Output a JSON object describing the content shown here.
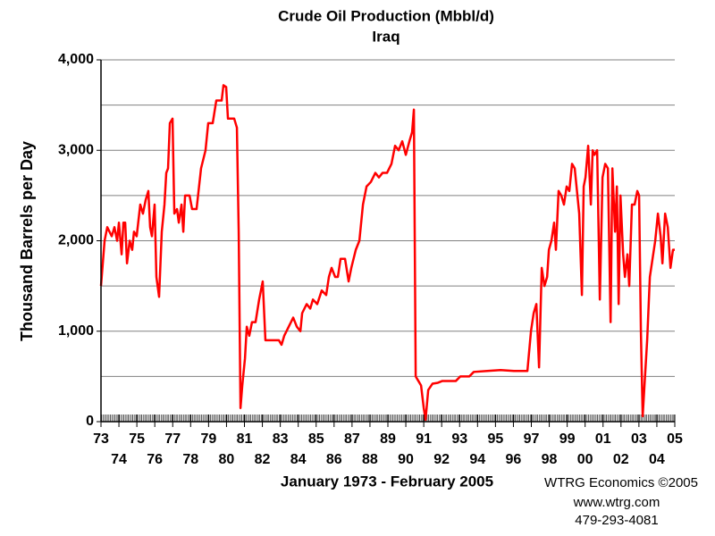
{
  "chart_data": {
    "type": "line",
    "title": "Crude Oil Production (Mbbl/d)",
    "subtitle": "Iraq",
    "ylabel": "Thousand Barrels per Day",
    "xlabel": "January 1973 - February 2005",
    "credits": [
      "WTRG Economics ©2005",
      "www.wtrg.com",
      "479-293-4081"
    ],
    "color": "#ff0000",
    "grid": true,
    "xlim": [
      1973,
      2005
    ],
    "ylim": [
      0,
      4000
    ],
    "yticks": [
      0,
      {
        "value": 1000,
        "label": "1,000"
      },
      {
        "value": 2000,
        "label": "2,000"
      },
      {
        "value": 3000,
        "label": "3,000"
      },
      {
        "value": 4000,
        "label": "4,000"
      }
    ],
    "minor_yticks": [
      500,
      1500,
      2500,
      3500
    ],
    "xticks": [
      {
        "value": 1973,
        "label": "73"
      },
      {
        "value": 1974,
        "label": "74"
      },
      {
        "value": 1975,
        "label": "75"
      },
      {
        "value": 1976,
        "label": "76"
      },
      {
        "value": 1977,
        "label": "77"
      },
      {
        "value": 1978,
        "label": "78"
      },
      {
        "value": 1979,
        "label": "79"
      },
      {
        "value": 1980,
        "label": "80"
      },
      {
        "value": 1981,
        "label": "81"
      },
      {
        "value": 1982,
        "label": "82"
      },
      {
        "value": 1983,
        "label": "83"
      },
      {
        "value": 1984,
        "label": "84"
      },
      {
        "value": 1985,
        "label": "85"
      },
      {
        "value": 1986,
        "label": "86"
      },
      {
        "value": 1987,
        "label": "87"
      },
      {
        "value": 1988,
        "label": "88"
      },
      {
        "value": 1989,
        "label": "89"
      },
      {
        "value": 1990,
        "label": "90"
      },
      {
        "value": 1991,
        "label": "91"
      },
      {
        "value": 1992,
        "label": "92"
      },
      {
        "value": 1993,
        "label": "93"
      },
      {
        "value": 1994,
        "label": "94"
      },
      {
        "value": 1995,
        "label": "95"
      },
      {
        "value": 1996,
        "label": "96"
      },
      {
        "value": 1997,
        "label": "97"
      },
      {
        "value": 1998,
        "label": "98"
      },
      {
        "value": 1999,
        "label": "99"
      },
      {
        "value": 2000,
        "label": "00"
      },
      {
        "value": 2001,
        "label": "01"
      },
      {
        "value": 2002,
        "label": "02"
      },
      {
        "value": 2003,
        "label": "03"
      },
      {
        "value": 2004,
        "label": "04"
      },
      {
        "value": 2005,
        "label": "05"
      }
    ],
    "x": [
      1973.0,
      1973.2,
      1973.35,
      1973.6,
      1973.75,
      1973.9,
      1974.0,
      1974.15,
      1974.25,
      1974.35,
      1974.45,
      1974.6,
      1974.74,
      1974.84,
      1974.99,
      1975.19,
      1975.34,
      1975.49,
      1975.64,
      1975.74,
      1975.84,
      1975.99,
      1976.09,
      1976.24,
      1976.39,
      1976.54,
      1976.64,
      1976.74,
      1976.84,
      1976.99,
      1977.09,
      1977.24,
      1977.34,
      1977.49,
      1977.59,
      1977.69,
      1977.94,
      1978.08,
      1978.33,
      1978.58,
      1978.83,
      1978.98,
      1979.23,
      1979.43,
      1979.73,
      1979.83,
      1979.98,
      1980.08,
      1980.43,
      1980.58,
      1980.68,
      1980.78,
      1980.88,
      1981.03,
      1981.13,
      1981.27,
      1981.42,
      1981.62,
      1981.82,
      1982.02,
      1982.17,
      1982.57,
      1982.92,
      1983.07,
      1983.22,
      1983.47,
      1983.72,
      1983.92,
      1984.12,
      1984.22,
      1984.47,
      1984.67,
      1984.82,
      1985.06,
      1985.31,
      1985.56,
      1985.71,
      1985.86,
      1986.06,
      1986.21,
      1986.36,
      1986.61,
      1986.81,
      1986.96,
      1987.21,
      1987.41,
      1987.61,
      1987.81,
      1988.05,
      1988.3,
      1988.5,
      1988.7,
      1988.95,
      1989.2,
      1989.4,
      1989.6,
      1989.8,
      1990.0,
      1990.2,
      1990.35,
      1990.45,
      1990.55,
      1990.7,
      1990.85,
      1991.0,
      1991.1,
      1991.25,
      1991.49,
      1991.79,
      1992.04,
      1992.79,
      1993.04,
      1993.54,
      1993.79,
      1994.54,
      1995.28,
      1996.03,
      1996.78,
      1996.98,
      1997.13,
      1997.28,
      1997.43,
      1997.58,
      1997.73,
      1997.88,
      1997.98,
      1998.12,
      1998.27,
      1998.37,
      1998.52,
      1998.67,
      1998.82,
      1998.97,
      1999.12,
      1999.27,
      1999.42,
      1999.52,
      1999.67,
      1999.82,
      1999.92,
      2000.02,
      2000.17,
      2000.32,
      2000.42,
      2000.52,
      2000.67,
      2000.82,
      2000.97,
      2001.12,
      2001.27,
      2001.42,
      2001.52,
      2001.67,
      2001.77,
      2001.87,
      2001.97,
      2002.12,
      2002.22,
      2002.36,
      2002.46,
      2002.61,
      2002.76,
      2002.91,
      2003.01,
      2003.11,
      2003.21,
      2003.31,
      2003.46,
      2003.61,
      2003.76,
      2003.91,
      2004.06,
      2004.21,
      2004.31,
      2004.46,
      2004.61,
      2004.76,
      2004.9,
      2005.0
    ],
    "values": [
      1500,
      2000,
      2150,
      2050,
      2150,
      2000,
      2200,
      1850,
      2200,
      2200,
      1750,
      2000,
      1900,
      2100,
      2050,
      2400,
      2300,
      2450,
      2550,
      2150,
      2050,
      2400,
      1600,
      1380,
      2100,
      2400,
      2750,
      2800,
      3300,
      3350,
      2300,
      2350,
      2200,
      2400,
      2100,
      2500,
      2500,
      2350,
      2350,
      2800,
      3000,
      3300,
      3300,
      3550,
      3550,
      3720,
      3700,
      3350,
      3350,
      3250,
      2100,
      150,
      400,
      700,
      1050,
      950,
      1100,
      1100,
      1350,
      1550,
      900,
      900,
      900,
      850,
      950,
      1050,
      1150,
      1050,
      1000,
      1200,
      1300,
      1250,
      1350,
      1300,
      1450,
      1400,
      1600,
      1700,
      1600,
      1600,
      1800,
      1800,
      1550,
      1700,
      1900,
      2000,
      2400,
      2600,
      2650,
      2750,
      2700,
      2750,
      2750,
      2850,
      3050,
      3000,
      3100,
      2950,
      3100,
      3200,
      3450,
      500,
      450,
      400,
      150,
      20,
      350,
      420,
      430,
      450,
      450,
      500,
      500,
      550,
      560,
      570,
      560,
      560,
      1000,
      1200,
      1300,
      600,
      1700,
      1500,
      1600,
      1900,
      2000,
      2200,
      1900,
      2550,
      2500,
      2400,
      2600,
      2550,
      2850,
      2800,
      2600,
      2300,
      1400,
      2600,
      2700,
      3050,
      2400,
      3000,
      2950,
      3000,
      1350,
      2700,
      2850,
      2800,
      1100,
      2800,
      2100,
      2600,
      1300,
      2500,
      1850,
      1600,
      1850,
      1500,
      2400,
      2400,
      2550,
      2500,
      1000,
      60,
      400,
      900,
      1600,
      1800,
      2000,
      2300,
      2050,
      1750,
      2300,
      2150,
      1700,
      1900,
      1900
    ]
  }
}
